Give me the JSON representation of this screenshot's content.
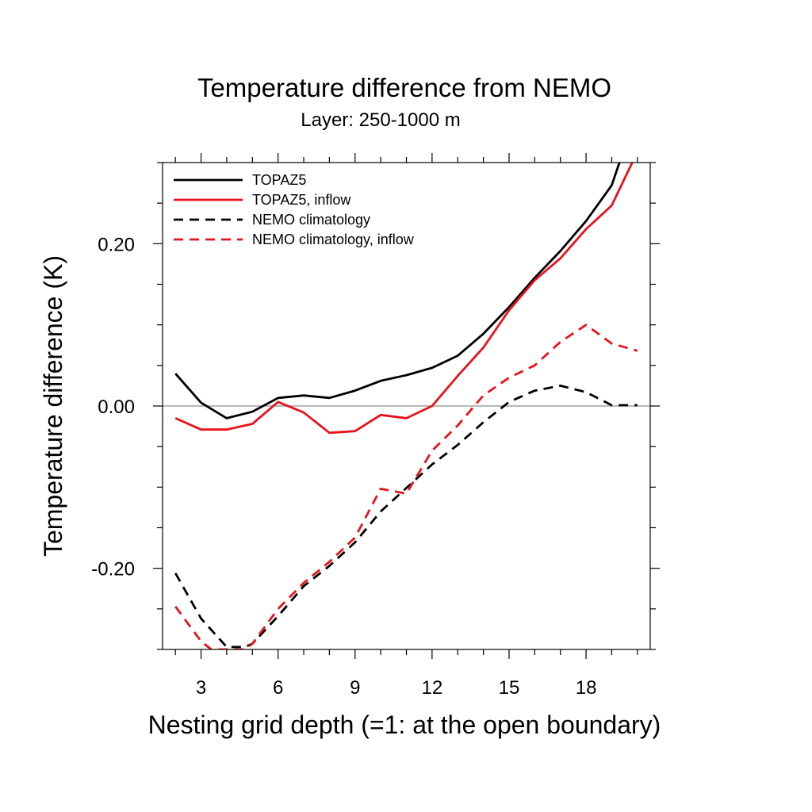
{
  "chart_data": {
    "type": "line",
    "title": "Temperature difference from NEMO",
    "subtitle": "Layer: 250-1000 m",
    "xlabel": "Nesting grid depth (=1: at the open boundary)",
    "ylabel": "Temperature difference (K)",
    "xlim": [
      1.5,
      20.5
    ],
    "ylim": [
      -0.3,
      0.3
    ],
    "x_ticks": [
      3,
      6,
      9,
      12,
      15,
      18
    ],
    "x_tick_labels": [
      "3",
      "6",
      "9",
      "12",
      "15",
      "18"
    ],
    "y_ticks": [
      0.2,
      0.0,
      -0.2
    ],
    "y_tick_labels": [
      "0.20",
      "0.00",
      "-0.20"
    ],
    "zero_line": true,
    "grid": false,
    "legend_position": "top-left",
    "series": [
      {
        "name": "TOPAZ5",
        "color": "#000000",
        "dash": "solid",
        "x": [
          2,
          3,
          4,
          5,
          6,
          7,
          8,
          9,
          10,
          11,
          12,
          13,
          14,
          15,
          16,
          17,
          18,
          19,
          19.3
        ],
        "y": [
          0.04,
          0.004,
          -0.015,
          -0.007,
          0.01,
          0.013,
          0.01,
          0.019,
          0.031,
          0.038,
          0.047,
          0.062,
          0.089,
          0.122,
          0.158,
          0.191,
          0.228,
          0.272,
          0.3
        ]
      },
      {
        "name": "TOPAZ5, inflow",
        "color": "#e8121b",
        "dash": "solid",
        "x": [
          2,
          3,
          4,
          5,
          6,
          7,
          8,
          9,
          10,
          11,
          12,
          13,
          14,
          15,
          16,
          17,
          18,
          19,
          19.8
        ],
        "y": [
          -0.015,
          -0.029,
          -0.029,
          -0.022,
          0.005,
          -0.008,
          -0.033,
          -0.031,
          -0.011,
          -0.015,
          0.0,
          0.037,
          0.072,
          0.118,
          0.155,
          0.182,
          0.218,
          0.247,
          0.3
        ]
      },
      {
        "name": "NEMO climatology",
        "color": "#000000",
        "dash": "dashed",
        "x": [
          2,
          3,
          4,
          4.7,
          5,
          6,
          7,
          8,
          9,
          10,
          11,
          12,
          13,
          14,
          15,
          16,
          17,
          18,
          19,
          20
        ],
        "y": [
          -0.206,
          -0.262,
          -0.297,
          -0.297,
          -0.293,
          -0.259,
          -0.222,
          -0.197,
          -0.168,
          -0.13,
          -0.101,
          -0.072,
          -0.048,
          -0.02,
          0.005,
          0.019,
          0.025,
          0.017,
          0.001,
          0.001
        ]
      },
      {
        "name": "NEMO climatology, inflow",
        "color": "#e8121b",
        "dash": "dashed",
        "x": [
          2,
          3,
          3.4,
          4.7,
          5,
          6,
          7,
          8,
          9,
          10,
          11,
          12,
          13,
          14,
          15,
          16,
          17,
          18,
          19,
          20
        ],
        "y": [
          -0.247,
          -0.29,
          -0.3,
          -0.3,
          -0.293,
          -0.25,
          -0.218,
          -0.192,
          -0.162,
          -0.102,
          -0.108,
          -0.055,
          -0.024,
          0.013,
          0.035,
          0.05,
          0.079,
          0.1,
          0.077,
          0.068
        ]
      }
    ]
  }
}
